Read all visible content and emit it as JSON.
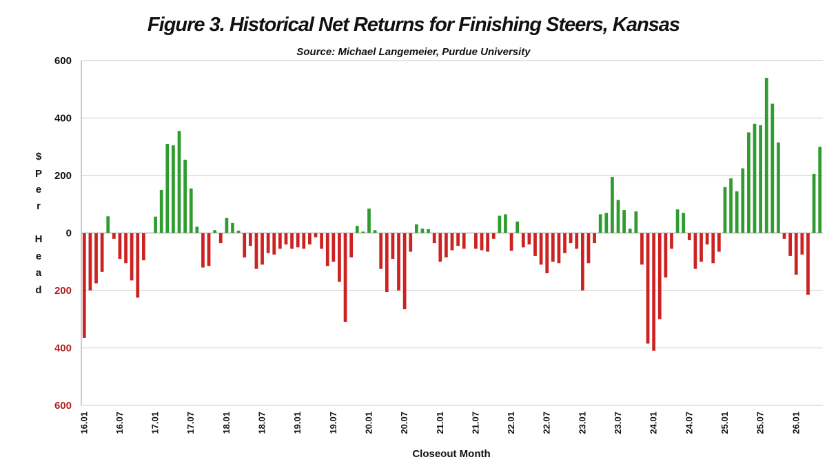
{
  "chart_data": {
    "type": "bar",
    "title": "Figure 3.  Historical Net Returns for Finishing Steers, Kansas",
    "subtitle": "Source:  Michael Langemeier, Purdue University",
    "xlabel": "Closeout Month",
    "ylabel_chars": [
      "$",
      "P",
      "e",
      "r",
      "H",
      "e",
      "a",
      "d"
    ],
    "ylim": [
      -600,
      600
    ],
    "yticks": [
      {
        "value": 600,
        "label": "600",
        "color": "#111111"
      },
      {
        "value": 400,
        "label": "400",
        "color": "#111111"
      },
      {
        "value": 200,
        "label": "200",
        "color": "#111111"
      },
      {
        "value": 0,
        "label": "0",
        "color": "#111111"
      },
      {
        "value": -200,
        "label": "200",
        "color": "#b22222"
      },
      {
        "value": -400,
        "label": "400",
        "color": "#b22222"
      },
      {
        "value": -600,
        "label": "600",
        "color": "#b22222"
      }
    ],
    "grid": true,
    "positive_color": "#2e9c2e",
    "negative_color": "#cc2222",
    "x_tick_labels": [
      {
        "index": 0,
        "label": "16.01"
      },
      {
        "index": 6,
        "label": "16.07"
      },
      {
        "index": 12,
        "label": "17.01"
      },
      {
        "index": 18,
        "label": "17.07"
      },
      {
        "index": 24,
        "label": "18.01"
      },
      {
        "index": 30,
        "label": "18.07"
      },
      {
        "index": 36,
        "label": "19.01"
      },
      {
        "index": 42,
        "label": "19.07"
      },
      {
        "index": 48,
        "label": "20.01"
      },
      {
        "index": 54,
        "label": "20.07"
      },
      {
        "index": 60,
        "label": "21.01"
      },
      {
        "index": 66,
        "label": "21.07"
      },
      {
        "index": 72,
        "label": "22.01"
      },
      {
        "index": 78,
        "label": "22.07"
      },
      {
        "index": 84,
        "label": "23.01"
      },
      {
        "index": 90,
        "label": "23.07"
      },
      {
        "index": 96,
        "label": "24.01"
      },
      {
        "index": 102,
        "label": "24.07"
      },
      {
        "index": 108,
        "label": "25.01"
      },
      {
        "index": 114,
        "label": "25.07"
      },
      {
        "index": 120,
        "label": "26.01"
      }
    ],
    "values": [
      -365,
      -200,
      -175,
      -135,
      58,
      -20,
      -90,
      -105,
      -165,
      -225,
      -95,
      0,
      57,
      150,
      310,
      305,
      355,
      255,
      155,
      22,
      -120,
      -115,
      10,
      -35,
      52,
      35,
      8,
      -85,
      -45,
      -125,
      -110,
      -70,
      -75,
      -55,
      -40,
      -55,
      -50,
      -55,
      -40,
      -15,
      -55,
      -115,
      -100,
      -170,
      -310,
      -85,
      25,
      5,
      85,
      10,
      -125,
      -205,
      -90,
      -200,
      -265,
      -65,
      30,
      15,
      13,
      -35,
      -100,
      -85,
      -60,
      -45,
      -55,
      0,
      -55,
      -60,
      -65,
      -20,
      60,
      65,
      -62,
      40,
      -50,
      -40,
      -80,
      -110,
      -140,
      -100,
      -105,
      -70,
      -35,
      -55,
      -200,
      -105,
      -35,
      65,
      70,
      195,
      115,
      80,
      15,
      75,
      -110,
      -385,
      -410,
      -300,
      -155,
      -55,
      82,
      70,
      -25,
      -125,
      -100,
      -40,
      -105,
      -65,
      160,
      190,
      145,
      225,
      350,
      380,
      375,
      540,
      450,
      315,
      -20,
      -80,
      -145,
      -75,
      -215,
      205,
      300
    ]
  }
}
